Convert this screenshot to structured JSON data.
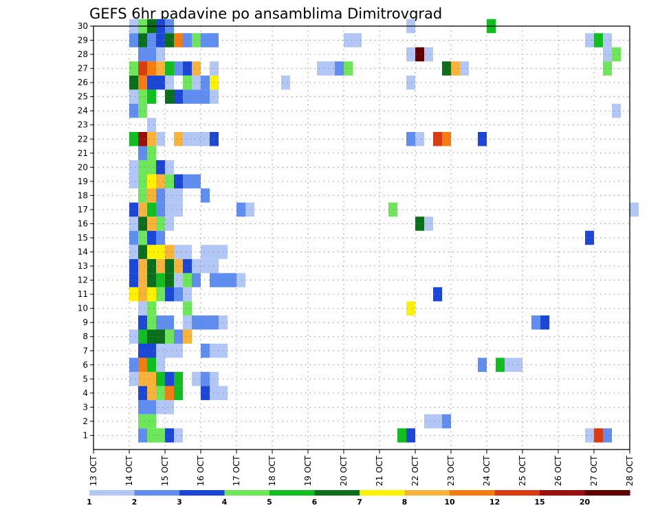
{
  "chart_data": {
    "type": "heatmap",
    "title": "GEFS 6hr padavine po ansamblima Dimitrovgrad",
    "xlabel": "",
    "ylabel": "",
    "x_ticks": [
      "13 OCT",
      "14 OCT",
      "15 OCT",
      "16 OCT",
      "17 OCT",
      "18 OCT",
      "19 OCT",
      "20 OCT",
      "21 OCT",
      "22 OCT",
      "23 OCT",
      "24 OCT",
      "25 OCT",
      "26 OCT",
      "27 OCT",
      "28 OCT"
    ],
    "xlim": [
      0,
      15
    ],
    "y_ticks": [
      "1",
      "2",
      "3",
      "4",
      "5",
      "6",
      "7",
      "8",
      "9",
      "10",
      "11",
      "12",
      "13",
      "14",
      "15",
      "16",
      "17",
      "18",
      "19",
      "20",
      "21",
      "22",
      "23",
      "24",
      "25",
      "26",
      "27",
      "28",
      "29",
      "30"
    ],
    "ylim": [
      0,
      30
    ],
    "grid": true,
    "colorbar": {
      "labels": [
        "1",
        "2",
        "3",
        "4",
        "5",
        "6",
        "7",
        "8",
        "10",
        "12",
        "15",
        "20"
      ],
      "colors": [
        "#b3c7f7",
        "#5f8ef0",
        "#1b46d6",
        "#6ee65a",
        "#10be20",
        "#0b6e1a",
        "#fff200",
        "#f9b23a",
        "#f57c10",
        "#d93c12",
        "#9b0f0f",
        "#5f0000"
      ]
    },
    "cell_width_days": 0.25,
    "members": [
      {
        "member": 1,
        "cells": [
          [
            1.25,
            1
          ],
          [
            1.5,
            3
          ],
          [
            1.75,
            3
          ],
          [
            2.0,
            2
          ],
          [
            2.25,
            0
          ],
          [
            8.5,
            4
          ],
          [
            8.75,
            2
          ],
          [
            13.75,
            0
          ],
          [
            14.0,
            9
          ],
          [
            14.25,
            1
          ]
        ]
      },
      {
        "member": 2,
        "cells": [
          [
            1.25,
            3
          ],
          [
            1.5,
            3
          ],
          [
            9.25,
            0
          ],
          [
            9.5,
            0
          ],
          [
            9.75,
            1
          ]
        ]
      },
      {
        "member": 3,
        "cells": [
          [
            1.25,
            1
          ],
          [
            1.5,
            1
          ],
          [
            1.75,
            0
          ],
          [
            2.0,
            0
          ]
        ]
      },
      {
        "member": 4,
        "cells": [
          [
            1.25,
            2
          ],
          [
            1.5,
            7
          ],
          [
            1.75,
            3
          ],
          [
            2.0,
            8
          ],
          [
            2.25,
            4
          ],
          [
            3.0,
            2
          ],
          [
            3.25,
            0
          ],
          [
            3.5,
            0
          ]
        ]
      },
      {
        "member": 5,
        "cells": [
          [
            1.0,
            0
          ],
          [
            1.25,
            7
          ],
          [
            1.5,
            7
          ],
          [
            1.75,
            4
          ],
          [
            2.0,
            2
          ],
          [
            2.25,
            4
          ],
          [
            2.75,
            0
          ],
          [
            3.0,
            1
          ],
          [
            3.25,
            0
          ]
        ]
      },
      {
        "member": 6,
        "cells": [
          [
            1.0,
            1
          ],
          [
            1.25,
            8
          ],
          [
            1.5,
            4
          ],
          [
            1.75,
            0
          ],
          [
            10.75,
            1
          ],
          [
            11.25,
            4
          ],
          [
            11.5,
            0
          ],
          [
            11.75,
            0
          ]
        ]
      },
      {
        "member": 7,
        "cells": [
          [
            1.25,
            2
          ],
          [
            1.5,
            2
          ],
          [
            1.75,
            0
          ],
          [
            2.0,
            0
          ],
          [
            2.25,
            0
          ],
          [
            3.0,
            1
          ],
          [
            3.25,
            0
          ],
          [
            3.5,
            0
          ]
        ]
      },
      {
        "member": 8,
        "cells": [
          [
            1.0,
            0
          ],
          [
            1.25,
            4
          ],
          [
            1.5,
            5
          ],
          [
            1.75,
            5
          ],
          [
            2.0,
            3
          ],
          [
            2.25,
            1
          ],
          [
            2.5,
            7
          ]
        ]
      },
      {
        "member": 9,
        "cells": [
          [
            1.25,
            2
          ],
          [
            1.5,
            3
          ],
          [
            1.75,
            1
          ],
          [
            2.0,
            1
          ],
          [
            2.5,
            0
          ],
          [
            2.75,
            1
          ],
          [
            3.0,
            1
          ],
          [
            3.25,
            1
          ],
          [
            3.5,
            0
          ],
          [
            12.25,
            1
          ],
          [
            12.5,
            2
          ]
        ]
      },
      {
        "member": 10,
        "cells": [
          [
            1.25,
            0
          ],
          [
            1.5,
            3
          ],
          [
            2.5,
            3
          ],
          [
            8.75,
            6
          ]
        ]
      },
      {
        "member": 11,
        "cells": [
          [
            1.0,
            6
          ],
          [
            1.25,
            7
          ],
          [
            1.5,
            6
          ],
          [
            1.75,
            3
          ],
          [
            2.0,
            2
          ],
          [
            2.25,
            1
          ],
          [
            2.5,
            0
          ],
          [
            9.5,
            2
          ]
        ]
      },
      {
        "member": 12,
        "cells": [
          [
            1.0,
            2
          ],
          [
            1.25,
            7
          ],
          [
            1.5,
            5
          ],
          [
            1.75,
            4
          ],
          [
            2.0,
            5
          ],
          [
            2.25,
            0
          ],
          [
            2.5,
            3
          ],
          [
            2.75,
            1
          ],
          [
            3.25,
            1
          ],
          [
            3.5,
            1
          ],
          [
            3.75,
            1
          ],
          [
            4.0,
            0
          ]
        ]
      },
      {
        "member": 13,
        "cells": [
          [
            1.0,
            2
          ],
          [
            1.25,
            7
          ],
          [
            1.5,
            5
          ],
          [
            1.75,
            7
          ],
          [
            2.0,
            5
          ],
          [
            2.25,
            7
          ],
          [
            2.5,
            2
          ],
          [
            2.75,
            0
          ],
          [
            3.0,
            0
          ],
          [
            3.25,
            0
          ]
        ]
      },
      {
        "member": 14,
        "cells": [
          [
            1.0,
            0
          ],
          [
            1.25,
            5
          ],
          [
            1.5,
            6
          ],
          [
            1.75,
            6
          ],
          [
            2.0,
            7
          ],
          [
            2.25,
            0
          ],
          [
            2.5,
            0
          ],
          [
            3.0,
            0
          ],
          [
            3.25,
            0
          ],
          [
            3.5,
            0
          ]
        ]
      },
      {
        "member": 15,
        "cells": [
          [
            1.0,
            1
          ],
          [
            1.25,
            3
          ],
          [
            1.5,
            2
          ],
          [
            1.75,
            1
          ],
          [
            13.75,
            2
          ]
        ]
      },
      {
        "member": 16,
        "cells": [
          [
            1.0,
            0
          ],
          [
            1.25,
            5
          ],
          [
            1.5,
            7
          ],
          [
            1.75,
            3
          ],
          [
            2.0,
            0
          ],
          [
            9.0,
            5
          ],
          [
            9.25,
            0
          ]
        ]
      },
      {
        "member": 17,
        "cells": [
          [
            1.0,
            2
          ],
          [
            1.25,
            7
          ],
          [
            1.5,
            4
          ],
          [
            1.75,
            1
          ],
          [
            2.0,
            0
          ],
          [
            2.25,
            0
          ],
          [
            4.0,
            1
          ],
          [
            4.25,
            0
          ],
          [
            8.25,
            3
          ],
          [
            15.0,
            0
          ]
        ]
      },
      {
        "member": 18,
        "cells": [
          [
            1.25,
            3
          ],
          [
            1.5,
            7
          ],
          [
            1.75,
            1
          ],
          [
            2.0,
            0
          ],
          [
            2.25,
            0
          ],
          [
            3.0,
            1
          ]
        ]
      },
      {
        "member": 19,
        "cells": [
          [
            1.0,
            0
          ],
          [
            1.25,
            3
          ],
          [
            1.5,
            6
          ],
          [
            1.75,
            7
          ],
          [
            2.0,
            3
          ],
          [
            2.25,
            2
          ],
          [
            2.5,
            1
          ],
          [
            2.75,
            1
          ]
        ]
      },
      {
        "member": 20,
        "cells": [
          [
            1.0,
            0
          ],
          [
            1.25,
            3
          ],
          [
            1.5,
            3
          ],
          [
            1.75,
            2
          ],
          [
            2.0,
            0
          ]
        ]
      },
      {
        "member": 21,
        "cells": [
          [
            1.25,
            1
          ],
          [
            1.5,
            3
          ]
        ]
      },
      {
        "member": 22,
        "cells": [
          [
            1.0,
            4
          ],
          [
            1.25,
            10
          ],
          [
            1.5,
            7
          ],
          [
            1.75,
            0
          ],
          [
            2.25,
            7
          ],
          [
            2.5,
            0
          ],
          [
            2.75,
            0
          ],
          [
            3.0,
            0
          ],
          [
            3.25,
            2
          ],
          [
            8.75,
            1
          ],
          [
            9.0,
            0
          ],
          [
            9.5,
            9
          ],
          [
            9.75,
            8
          ],
          [
            10.75,
            2
          ]
        ]
      },
      {
        "member": 23,
        "cells": [
          [
            1.5,
            0
          ]
        ]
      },
      {
        "member": 24,
        "cells": [
          [
            1.0,
            1
          ],
          [
            1.25,
            3
          ],
          [
            14.5,
            0
          ]
        ]
      },
      {
        "member": 25,
        "cells": [
          [
            1.0,
            0
          ],
          [
            1.25,
            3
          ],
          [
            1.5,
            4
          ],
          [
            2.0,
            5
          ],
          [
            2.25,
            2
          ],
          [
            2.5,
            1
          ],
          [
            2.75,
            1
          ],
          [
            3.0,
            1
          ],
          [
            3.25,
            0
          ]
        ]
      },
      {
        "member": 26,
        "cells": [
          [
            1.0,
            5
          ],
          [
            1.25,
            8
          ],
          [
            1.5,
            2
          ],
          [
            1.75,
            2
          ],
          [
            2.0,
            0
          ],
          [
            2.5,
            3
          ],
          [
            2.75,
            0
          ],
          [
            3.0,
            1
          ],
          [
            3.25,
            6
          ],
          [
            5.25,
            0
          ],
          [
            8.75,
            0
          ]
        ]
      },
      {
        "member": 27,
        "cells": [
          [
            1.0,
            3
          ],
          [
            1.25,
            9
          ],
          [
            1.5,
            8
          ],
          [
            1.75,
            7
          ],
          [
            2.0,
            4
          ],
          [
            2.25,
            1
          ],
          [
            2.5,
            2
          ],
          [
            2.75,
            7
          ],
          [
            3.25,
            0
          ],
          [
            6.25,
            0
          ],
          [
            6.5,
            0
          ],
          [
            6.75,
            1
          ],
          [
            7.0,
            3
          ],
          [
            9.75,
            5
          ],
          [
            10.0,
            7
          ],
          [
            10.25,
            0
          ],
          [
            14.25,
            3
          ]
        ]
      },
      {
        "member": 28,
        "cells": [
          [
            1.25,
            1
          ],
          [
            1.5,
            1
          ],
          [
            1.75,
            0
          ],
          [
            8.75,
            0
          ],
          [
            9.0,
            11
          ],
          [
            9.25,
            0
          ],
          [
            14.25,
            0
          ],
          [
            14.5,
            3
          ]
        ]
      },
      {
        "member": 29,
        "cells": [
          [
            1.0,
            1
          ],
          [
            1.25,
            5
          ],
          [
            1.5,
            1
          ],
          [
            1.75,
            2
          ],
          [
            2.0,
            5
          ],
          [
            2.25,
            8
          ],
          [
            2.5,
            1
          ],
          [
            2.75,
            3
          ],
          [
            3.0,
            1
          ],
          [
            3.25,
            1
          ],
          [
            7.0,
            0
          ],
          [
            7.25,
            0
          ],
          [
            13.75,
            0
          ],
          [
            14.0,
            4
          ],
          [
            14.25,
            0
          ]
        ]
      },
      {
        "member": 30,
        "cells": [
          [
            1.0,
            0
          ],
          [
            1.25,
            3
          ],
          [
            1.5,
            5
          ],
          [
            1.75,
            2
          ],
          [
            2.0,
            1
          ],
          [
            8.75,
            0
          ],
          [
            11.0,
            4
          ]
        ]
      }
    ]
  }
}
